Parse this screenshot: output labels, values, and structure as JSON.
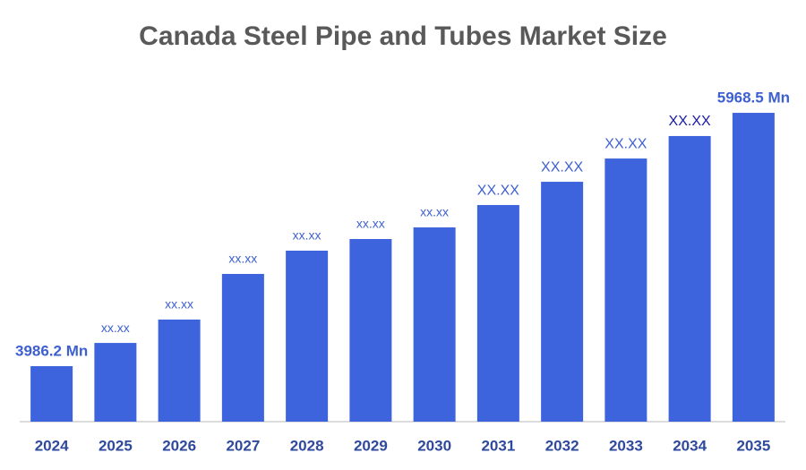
{
  "chart_data": {
    "type": "bar",
    "title": "Canada Steel Pipe and Tubes Market Size",
    "categories": [
      "2024",
      "2025",
      "2026",
      "2027",
      "2028",
      "2029",
      "2030",
      "2031",
      "2032",
      "2033",
      "2034",
      "2035"
    ],
    "values": [
      3986.2,
      4168,
      4351,
      4708,
      4890,
      4981,
      5072,
      5247,
      5429,
      5611,
      5787,
      5968.5
    ],
    "value_labels": [
      "3986.2 Mn",
      "xx.xx",
      "xx.xx",
      "xx.xx",
      "xx.xx",
      "xx.xx",
      "xx.xx",
      "XX.XX",
      "XX.XX",
      "XX.XX",
      "XX.XX",
      "5968.5 Mn"
    ],
    "color": "#3d63dd",
    "ylim": [
      3552,
      6200
    ]
  }
}
